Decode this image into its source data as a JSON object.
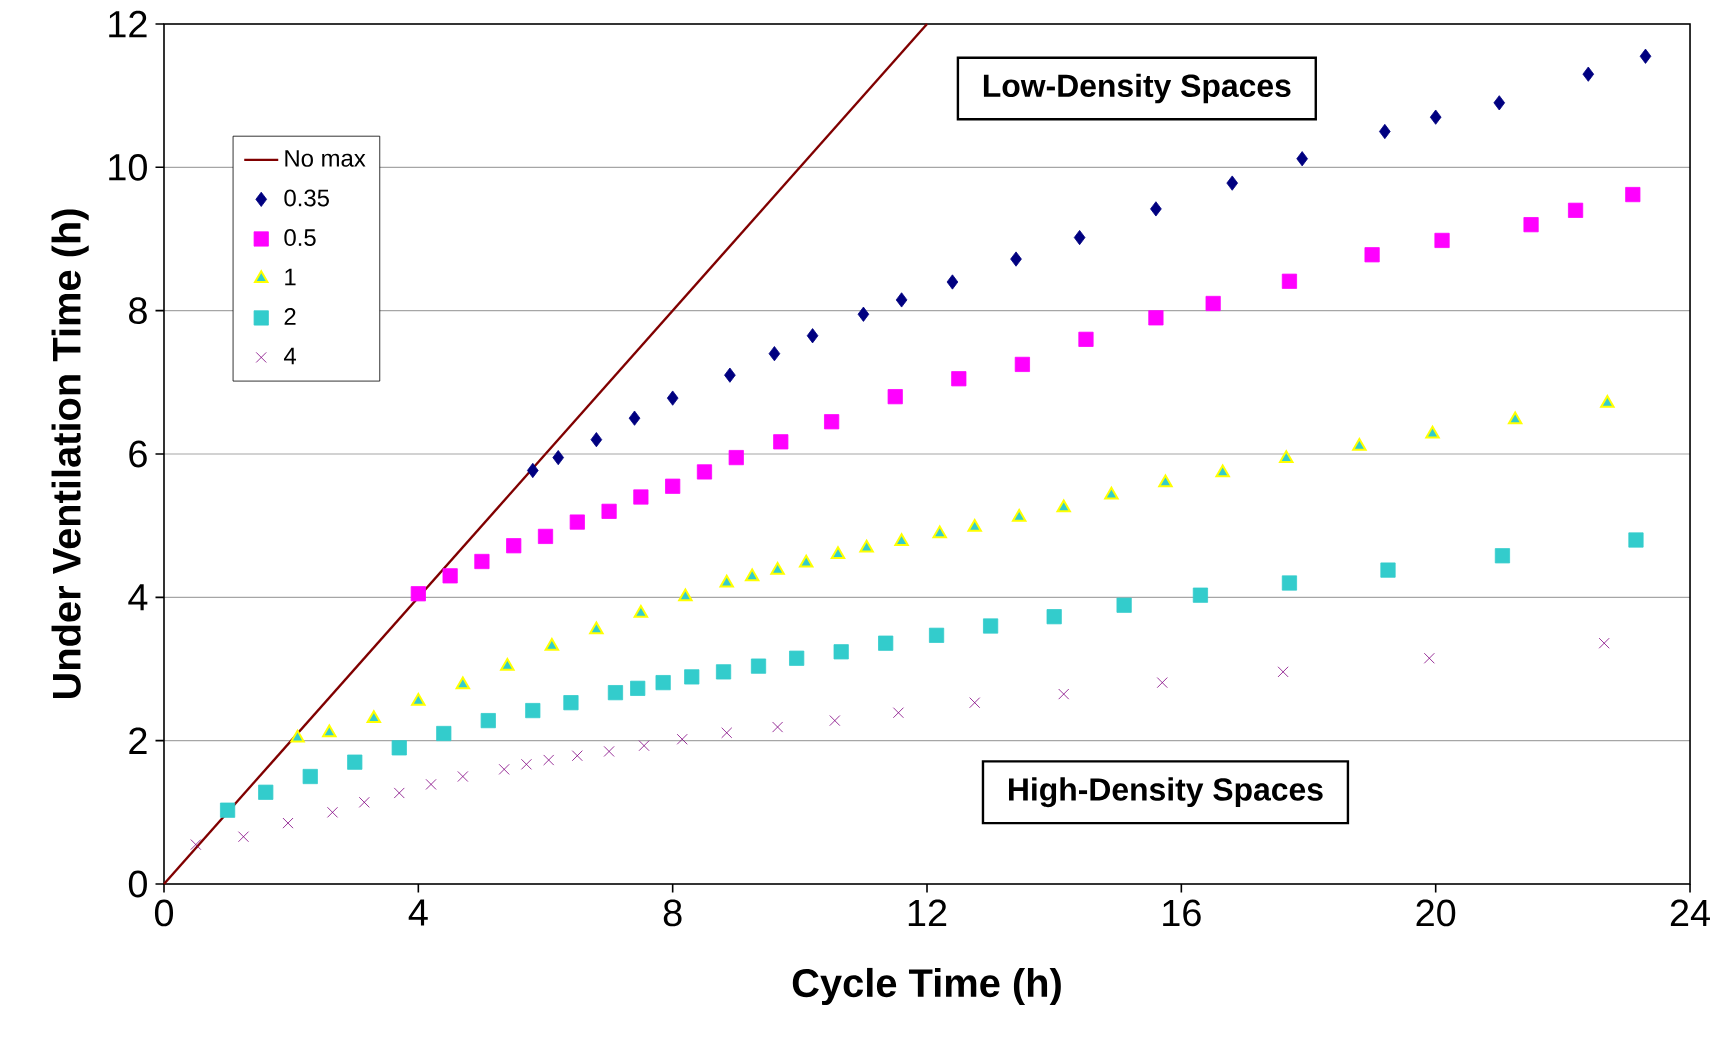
{
  "chart_data": {
    "type": "scatter",
    "xlabel": "Cycle Time (h)",
    "ylabel": "Under Ventilation Time (h)",
    "xlim": [
      0,
      24
    ],
    "ylim": [
      0,
      12
    ],
    "xticks": [
      0,
      4,
      8,
      12,
      16,
      20,
      24
    ],
    "yticks": [
      0,
      2,
      4,
      6,
      8,
      10,
      12
    ],
    "grid": "y",
    "legend": "top left",
    "annotations": [
      "Low-Density Spaces",
      "High-Density Spaces"
    ],
    "series": [
      {
        "name": "No max",
        "type": "line",
        "color": "#800000",
        "marker": "none",
        "x": [
          0,
          12
        ],
        "values": [
          0,
          12
        ]
      },
      {
        "name": "0.35",
        "color": "#000080",
        "marker": "diamond",
        "x": [
          5.8,
          6.2,
          6.8,
          7.4,
          8.0,
          8.9,
          9.6,
          10.2,
          11.0,
          11.6,
          12.4,
          13.4,
          14.4,
          15.6,
          16.8,
          17.9,
          19.2,
          20.0,
          21.0,
          22.4,
          23.3
        ],
        "values": [
          5.77,
          5.95,
          6.2,
          6.5,
          6.78,
          7.1,
          7.4,
          7.65,
          7.95,
          8.15,
          8.4,
          8.72,
          9.02,
          9.42,
          9.78,
          10.12,
          10.5,
          10.7,
          10.9,
          11.3,
          11.55
        ]
      },
      {
        "name": "0.5",
        "color": "#ff00ff",
        "marker": "square",
        "x": [
          4.0,
          4.5,
          5.0,
          5.5,
          6.0,
          6.5,
          7.0,
          7.5,
          8.0,
          8.5,
          9.0,
          9.7,
          10.5,
          11.5,
          12.5,
          13.5,
          14.5,
          15.6,
          16.5,
          17.7,
          19.0,
          20.1,
          21.5,
          22.2,
          23.1
        ],
        "values": [
          4.05,
          4.3,
          4.5,
          4.72,
          4.85,
          5.05,
          5.2,
          5.4,
          5.55,
          5.75,
          5.95,
          6.17,
          6.45,
          6.8,
          7.05,
          7.25,
          7.6,
          7.9,
          8.1,
          8.41,
          8.78,
          8.98,
          9.2,
          9.4,
          9.62
        ]
      },
      {
        "name": "1",
        "color": "#ffff00",
        "marker": "triangle",
        "x": [
          2.1,
          2.6,
          3.3,
          4.0,
          4.7,
          5.4,
          6.1,
          6.8,
          7.5,
          8.2,
          8.85,
          9.25,
          9.65,
          10.1,
          10.6,
          11.05,
          11.6,
          12.2,
          12.75,
          13.45,
          14.15,
          14.9,
          15.75,
          16.65,
          17.65,
          18.8,
          19.95,
          21.25,
          22.7
        ],
        "values": [
          2.04,
          2.11,
          2.31,
          2.55,
          2.78,
          3.04,
          3.32,
          3.55,
          3.78,
          4.01,
          4.2,
          4.29,
          4.38,
          4.48,
          4.6,
          4.69,
          4.78,
          4.89,
          4.98,
          5.12,
          5.25,
          5.43,
          5.6,
          5.74,
          5.94,
          6.11,
          6.28,
          6.48,
          6.71
        ]
      },
      {
        "name": "2",
        "color": "#33cccc",
        "marker": "square",
        "x": [
          1.0,
          1.6,
          2.3,
          3.0,
          3.7,
          4.4,
          5.1,
          5.8,
          6.4,
          7.1,
          7.45,
          7.85,
          8.3,
          8.8,
          9.35,
          9.95,
          10.65,
          11.35,
          12.15,
          13.0,
          14.0,
          15.1,
          16.3,
          17.7,
          19.25,
          21.05,
          23.15
        ],
        "values": [
          1.03,
          1.28,
          1.5,
          1.7,
          1.9,
          2.1,
          2.28,
          2.42,
          2.53,
          2.67,
          2.73,
          2.81,
          2.89,
          2.96,
          3.04,
          3.15,
          3.24,
          3.36,
          3.47,
          3.6,
          3.73,
          3.89,
          4.03,
          4.2,
          4.38,
          4.58,
          4.8
        ]
      },
      {
        "name": "4",
        "color": "#800080",
        "marker": "cross",
        "x": [
          0.5,
          1.25,
          1.95,
          2.65,
          3.15,
          3.7,
          4.2,
          4.7,
          5.35,
          5.7,
          6.05,
          6.5,
          7.0,
          7.55,
          8.15,
          8.85,
          9.65,
          10.55,
          11.55,
          12.75,
          14.15,
          15.7,
          17.6,
          19.9,
          22.65
        ],
        "values": [
          0.55,
          0.66,
          0.85,
          1.0,
          1.14,
          1.27,
          1.39,
          1.5,
          1.6,
          1.67,
          1.73,
          1.79,
          1.85,
          1.93,
          2.02,
          2.11,
          2.19,
          2.28,
          2.39,
          2.53,
          2.65,
          2.81,
          2.96,
          3.15,
          3.36
        ]
      }
    ]
  }
}
